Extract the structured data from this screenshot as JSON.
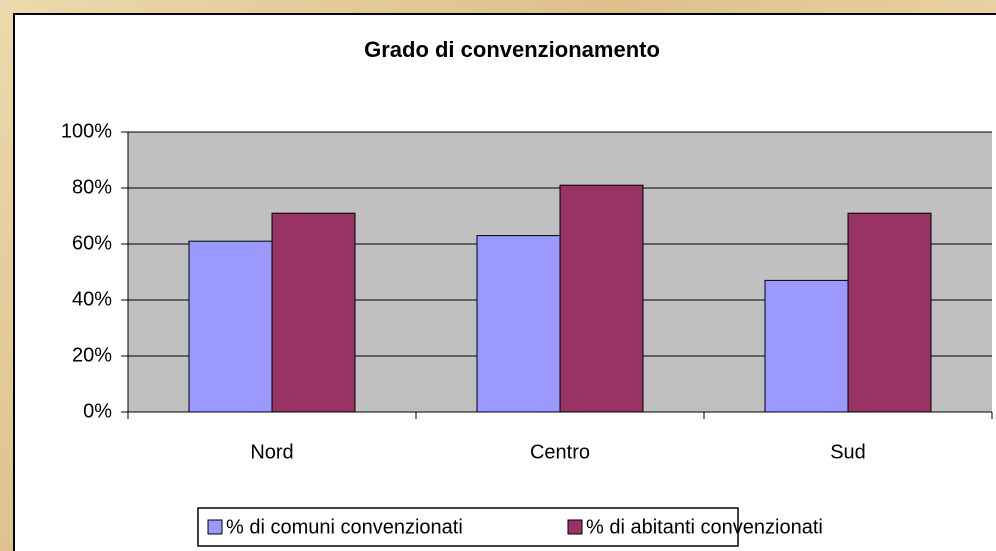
{
  "chart_data": {
    "type": "bar",
    "title": "Grado di convenzionamento",
    "categories": [
      "Nord",
      "Centro",
      "Sud"
    ],
    "series": [
      {
        "name": "% di comuni convenzionati",
        "color": "#9999ff",
        "values": [
          61,
          63,
          47
        ]
      },
      {
        "name": "% di abitanti convenzionati",
        "color": "#993366",
        "values": [
          71,
          81,
          71
        ]
      }
    ],
    "ylim": [
      0,
      100
    ],
    "yticks": [
      {
        "value": 0,
        "label": "0%"
      },
      {
        "value": 20,
        "label": "20%"
      },
      {
        "value": 40,
        "label": "40%"
      },
      {
        "value": 60,
        "label": "60%"
      },
      {
        "value": 80,
        "label": "80%"
      },
      {
        "value": 100,
        "label": "100%"
      }
    ],
    "grid": true,
    "legend": "bottom"
  }
}
